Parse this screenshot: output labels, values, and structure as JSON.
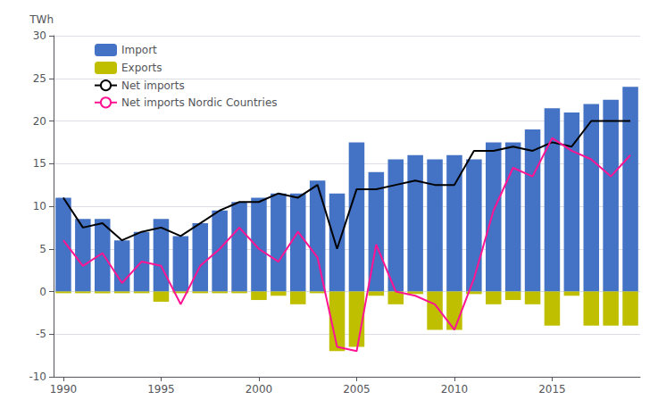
{
  "chart_data": {
    "type": "bar",
    "y_label": "TWh",
    "x": [
      1990,
      1991,
      1992,
      1993,
      1994,
      1995,
      1996,
      1997,
      1998,
      1999,
      2000,
      2001,
      2002,
      2003,
      2004,
      2005,
      2006,
      2007,
      2008,
      2009,
      2010,
      2011,
      2012,
      2013,
      2014,
      2015,
      2016,
      2017,
      2018,
      2019
    ],
    "series": [
      {
        "name": "Import",
        "type": "bar",
        "color": "#4472C4",
        "values": [
          11.0,
          8.5,
          8.5,
          6.0,
          7.0,
          8.5,
          6.5,
          8.0,
          9.5,
          10.5,
          11.0,
          11.5,
          11.5,
          13.0,
          11.5,
          17.5,
          14.0,
          15.5,
          16.0,
          15.5,
          16.0,
          15.5,
          17.5,
          17.5,
          19.0,
          21.5,
          21.0,
          22.0,
          22.5,
          24.0
        ]
      },
      {
        "name": "Exports",
        "type": "bar",
        "color": "#BFBF00",
        "values": [
          -0.2,
          -0.2,
          -0.2,
          -0.2,
          -0.2,
          -1.2,
          -0.2,
          -0.2,
          -0.2,
          -0.2,
          -1.0,
          -0.5,
          -1.5,
          -0.2,
          -7.0,
          -6.5,
          -0.5,
          -1.5,
          -0.3,
          -4.5,
          -4.5,
          -0.3,
          -1.5,
          -1.0,
          -1.5,
          -4.0,
          -0.5,
          -4.0,
          -4.0,
          -4.0
        ]
      },
      {
        "name": "Net imports",
        "type": "line",
        "color": "#000000",
        "values": [
          11.0,
          7.5,
          8.0,
          6.0,
          7.0,
          7.5,
          6.5,
          8.0,
          9.5,
          10.5,
          10.5,
          11.5,
          11.0,
          12.5,
          5.0,
          12.0,
          12.0,
          12.5,
          13.0,
          12.5,
          12.5,
          16.5,
          16.5,
          17.0,
          16.5,
          17.5,
          17.0,
          20.0,
          20.0,
          20.0
        ]
      },
      {
        "name": "Net imports Nordic Countries",
        "type": "line",
        "color": "#FF1493",
        "values": [
          6.0,
          3.0,
          4.5,
          1.0,
          3.5,
          3.0,
          -1.5,
          3.0,
          5.0,
          7.5,
          5.0,
          3.5,
          7.0,
          4.0,
          -6.5,
          -7.0,
          5.5,
          0.0,
          -0.5,
          -1.5,
          -4.5,
          1.5,
          9.5,
          14.5,
          13.5,
          18.0,
          16.5,
          15.5,
          13.5,
          16.0
        ]
      }
    ],
    "xlim": [
      1989.5,
      2019.5
    ],
    "xticks": [
      1990,
      1995,
      2000,
      2005,
      2010,
      2015
    ],
    "ylim": [
      -10,
      30
    ],
    "yticks": [
      -10,
      -5,
      0,
      5,
      10,
      15,
      20,
      25,
      30
    ],
    "grid": true,
    "legend": "upper left"
  }
}
